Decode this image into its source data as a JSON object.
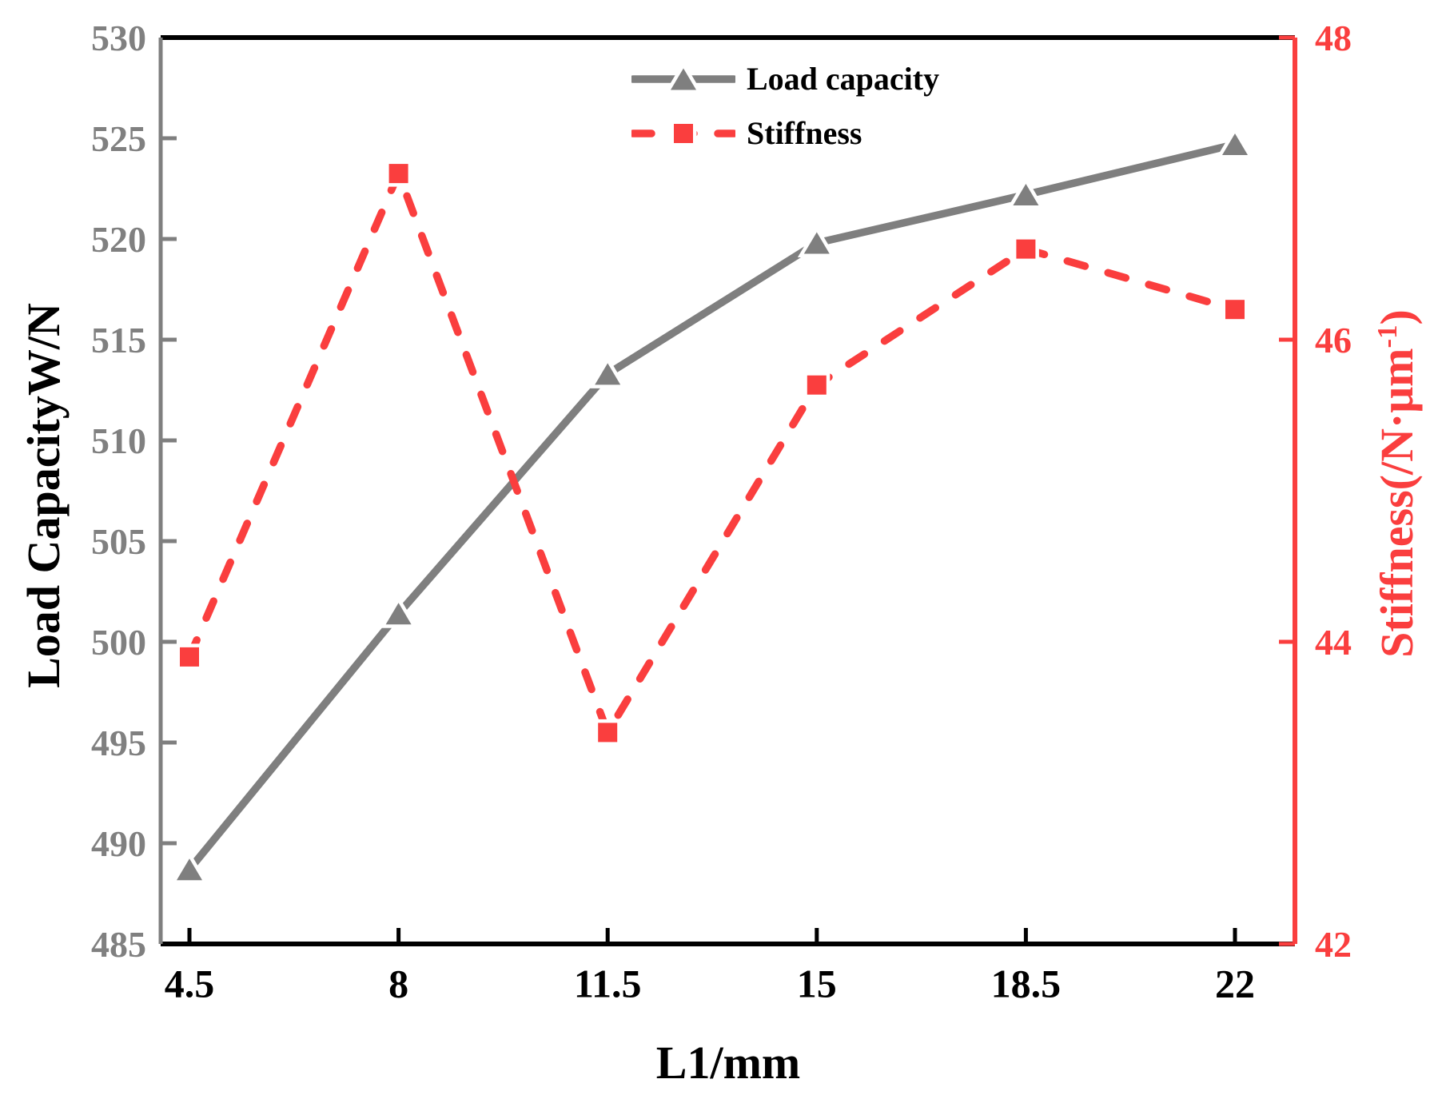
{
  "chart_data": {
    "type": "line",
    "title": "",
    "xlabel": "L1/mm",
    "ylabel_left": "Load CapacityW/N",
    "ylabel_right": {
      "prefix": "Stiffness(/N·μm",
      "superscript": "-1",
      "suffix": ")"
    },
    "x": [
      4.5,
      8,
      11.5,
      15,
      18.5,
      22
    ],
    "x_tick_labels": [
      "4.5",
      "8",
      "11.5",
      "15",
      "18.5",
      "22"
    ],
    "x_axis_color": "#000000",
    "y_left_axis": {
      "min": 485,
      "max": 530,
      "tick_step": 5,
      "tick_labels": [
        "485",
        "490",
        "495",
        "500",
        "505",
        "510",
        "515",
        "520",
        "525",
        "530"
      ],
      "spine_color": "#7F7F7F",
      "tick_label_color": "#808080",
      "title_color": "#000000"
    },
    "y_right_axis": {
      "min": 42,
      "max": 48,
      "tick_step": 2,
      "tick_labels": [
        "42",
        "44",
        "46",
        "48"
      ],
      "color": "#FA3E3E"
    },
    "series": [
      {
        "name": "Load capacity",
        "axis": "left",
        "marker": "triangle",
        "line_style": "solid",
        "color": "#7F7F7F",
        "values": [
          488.7,
          501.4,
          513.3,
          519.8,
          522.2,
          524.7
        ]
      },
      {
        "name": "Stiffness",
        "axis": "right",
        "marker": "square",
        "line_style": "dashed",
        "color": "#FA3E3E",
        "values": [
          43.9,
          47.1,
          43.4,
          45.7,
          46.6,
          46.2
        ]
      }
    ],
    "legend": {
      "position": "top-center",
      "entries": [
        "Load capacity",
        "Stiffness"
      ]
    }
  }
}
